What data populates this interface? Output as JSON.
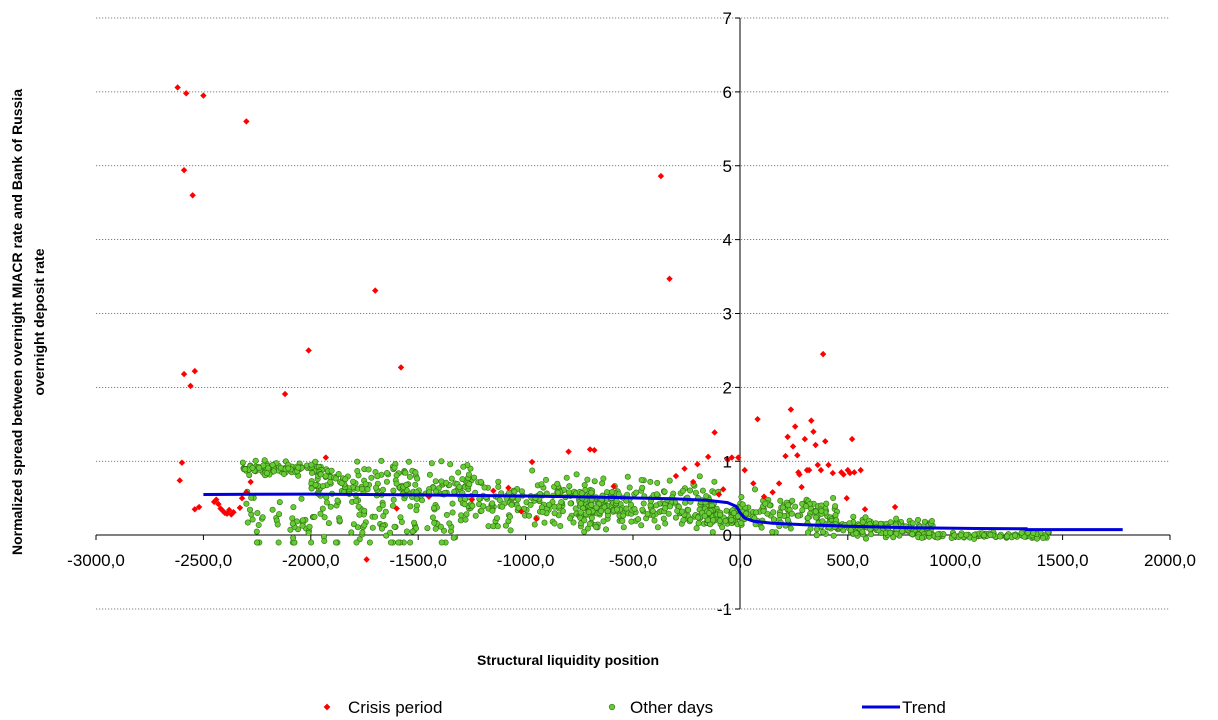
{
  "chart_data": {
    "type": "scatter",
    "xlabel": "Structural liquidity  position",
    "ylabel": [
      "Normalized spread between overnight MIACR rate and Bank of Russia",
      "overnight deposit rate"
    ],
    "xlim": [
      -3000,
      2000
    ],
    "ylim": [
      -1,
      7
    ],
    "x_ticks": [
      {
        "value": -3000,
        "label": "-3000,0"
      },
      {
        "value": -2500,
        "label": "-2500,0"
      },
      {
        "value": -2000,
        "label": "-2000,0"
      },
      {
        "value": -1500,
        "label": "-1500,0"
      },
      {
        "value": -1000,
        "label": "-1000,0"
      },
      {
        "value": -500,
        "label": "-500,0"
      },
      {
        "value": 0,
        "label": "0,0"
      },
      {
        "value": 500,
        "label": "500,0"
      },
      {
        "value": 1000,
        "label": "1000,0"
      },
      {
        "value": 1500,
        "label": "1500,0"
      },
      {
        "value": 2000,
        "label": "2000,0"
      }
    ],
    "y_ticks": [
      {
        "value": -1,
        "label": "-1"
      },
      {
        "value": 0,
        "label": "0"
      },
      {
        "value": 1,
        "label": "1"
      },
      {
        "value": 2,
        "label": "2"
      },
      {
        "value": 3,
        "label": "3"
      },
      {
        "value": 4,
        "label": "4"
      },
      {
        "value": 5,
        "label": "5"
      },
      {
        "value": 6,
        "label": "6"
      },
      {
        "value": 7,
        "label": "7"
      }
    ],
    "grid": "horizontal-dotted",
    "legend_position": "bottom",
    "series": [
      {
        "name": "Crisis period",
        "marker": "diamond",
        "color": "#ff0000",
        "points": [
          [
            -2620,
            6.06
          ],
          [
            -2580,
            5.98
          ],
          [
            -2500,
            5.95
          ],
          [
            -2300,
            5.6
          ],
          [
            -2590,
            4.94
          ],
          [
            -2550,
            4.6
          ],
          [
            -1700,
            3.31
          ],
          [
            -2010,
            2.5
          ],
          [
            -1580,
            2.27
          ],
          [
            -2540,
            2.22
          ],
          [
            -2590,
            2.18
          ],
          [
            -2560,
            2.02
          ],
          [
            -2120,
            1.91
          ],
          [
            -2600,
            0.98
          ],
          [
            -2610,
            0.74
          ],
          [
            -2540,
            0.35
          ],
          [
            -2520,
            0.38
          ],
          [
            -2450,
            0.45
          ],
          [
            -2440,
            0.48
          ],
          [
            -2430,
            0.42
          ],
          [
            -2420,
            0.36
          ],
          [
            -2410,
            0.33
          ],
          [
            -2400,
            0.3
          ],
          [
            -2390,
            0.29
          ],
          [
            -2380,
            0.34
          ],
          [
            -2370,
            0.28
          ],
          [
            -2360,
            0.31
          ],
          [
            -2330,
            0.37
          ],
          [
            -2320,
            0.5
          ],
          [
            -2300,
            0.58
          ],
          [
            -2280,
            0.72
          ],
          [
            -1930,
            1.05
          ],
          [
            -1740,
            -0.33
          ],
          [
            -1600,
            0.36
          ],
          [
            -1450,
            0.52
          ],
          [
            -1250,
            0.48
          ],
          [
            -1150,
            0.6
          ],
          [
            -1080,
            0.64
          ],
          [
            -1020,
            0.32
          ],
          [
            -970,
            0.99
          ],
          [
            -950,
            0.22
          ],
          [
            -800,
            1.13
          ],
          [
            -700,
            1.16
          ],
          [
            -680,
            1.15
          ],
          [
            -590,
            0.66
          ],
          [
            -370,
            4.86
          ],
          [
            -330,
            3.47
          ],
          [
            -300,
            0.8
          ],
          [
            -260,
            0.9
          ],
          [
            -220,
            0.72
          ],
          [
            -200,
            0.96
          ],
          [
            -150,
            1.06
          ],
          [
            -120,
            1.39
          ],
          [
            -100,
            0.55
          ],
          [
            -80,
            0.62
          ],
          [
            -60,
            1.02
          ],
          [
            -40,
            1.05
          ],
          [
            -10,
            1.05
          ],
          [
            20,
            0.88
          ],
          [
            60,
            0.7
          ],
          [
            80,
            1.57
          ],
          [
            110,
            0.52
          ],
          [
            150,
            0.58
          ],
          [
            180,
            0.7
          ],
          [
            210,
            1.07
          ],
          [
            220,
            1.33
          ],
          [
            235,
            1.7
          ],
          [
            245,
            1.2
          ],
          [
            255,
            1.47
          ],
          [
            265,
            1.08
          ],
          [
            270,
            0.85
          ],
          [
            275,
            0.82
          ],
          [
            285,
            0.65
          ],
          [
            300,
            1.3
          ],
          [
            310,
            0.88
          ],
          [
            320,
            0.88
          ],
          [
            330,
            1.55
          ],
          [
            340,
            1.4
          ],
          [
            350,
            1.22
          ],
          [
            360,
            0.95
          ],
          [
            375,
            0.88
          ],
          [
            385,
            2.45
          ],
          [
            395,
            1.27
          ],
          [
            410,
            0.95
          ],
          [
            430,
            0.84
          ],
          [
            470,
            0.85
          ],
          [
            480,
            0.82
          ],
          [
            495,
            0.5
          ],
          [
            500,
            0.88
          ],
          [
            510,
            0.84
          ],
          [
            520,
            1.3
          ],
          [
            530,
            0.85
          ],
          [
            560,
            0.88
          ],
          [
            580,
            0.35
          ],
          [
            720,
            0.38
          ]
        ]
      },
      {
        "name": "Other days",
        "marker": "circle",
        "color": "#66cc33",
        "points": []
      },
      {
        "name": "Trend",
        "marker": "line",
        "color": "#0000dd",
        "points": [
          [
            -2500,
            0.55
          ],
          [
            -2000,
            0.555
          ],
          [
            -1500,
            0.545
          ],
          [
            -1000,
            0.53
          ],
          [
            -600,
            0.51
          ],
          [
            -300,
            0.49
          ],
          [
            -150,
            0.47
          ],
          [
            -60,
            0.44
          ],
          [
            -20,
            0.39
          ],
          [
            0,
            0.3
          ],
          [
            20,
            0.23
          ],
          [
            60,
            0.19
          ],
          [
            150,
            0.16
          ],
          [
            300,
            0.14
          ],
          [
            500,
            0.12
          ],
          [
            800,
            0.1
          ],
          [
            1100,
            0.09
          ],
          [
            1330,
            0.085
          ],
          [
            1330,
            0.075
          ],
          [
            1780,
            0.075
          ]
        ]
      }
    ]
  }
}
